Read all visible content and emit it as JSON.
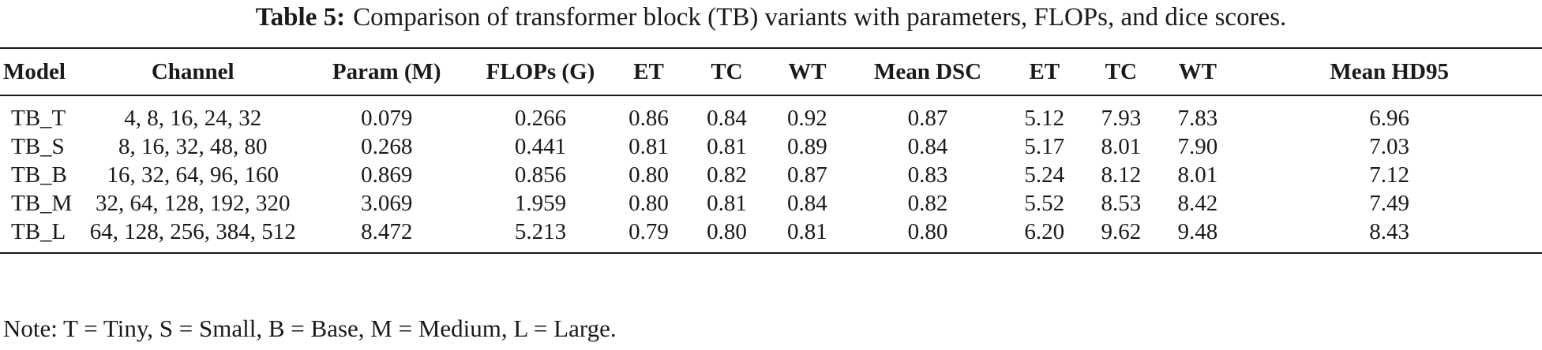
{
  "caption": {
    "label": "Table 5:",
    "text": "Comparison of transformer block (TB) variants with parameters, FLOPs, and dice scores."
  },
  "table": {
    "headers": [
      "Model",
      "Channel",
      "Param (M)",
      "FLOPs (G)",
      "ET",
      "TC",
      "WT",
      "Mean DSC",
      "ET",
      "TC",
      "WT",
      "Mean HD95"
    ],
    "rows": [
      [
        "TB_T",
        "4, 8, 16, 24, 32",
        "0.079",
        "0.266",
        "0.86",
        "0.84",
        "0.92",
        "0.87",
        "5.12",
        "7.93",
        "7.83",
        "6.96"
      ],
      [
        "TB_S",
        "8, 16, 32, 48, 80",
        "0.268",
        "0.441",
        "0.81",
        "0.81",
        "0.89",
        "0.84",
        "5.17",
        "8.01",
        "7.90",
        "7.03"
      ],
      [
        "TB_B",
        "16, 32, 64, 96, 160",
        "0.869",
        "0.856",
        "0.80",
        "0.82",
        "0.87",
        "0.83",
        "5.24",
        "8.12",
        "8.01",
        "7.12"
      ],
      [
        "TB_M",
        "32, 64, 128, 192, 320",
        "3.069",
        "1.959",
        "0.80",
        "0.81",
        "0.84",
        "0.82",
        "5.52",
        "8.53",
        "8.42",
        "7.49"
      ],
      [
        "TB_L",
        "64, 128, 256, 384, 512",
        "8.472",
        "5.213",
        "0.79",
        "0.80",
        "0.81",
        "0.80",
        "6.20",
        "9.62",
        "9.48",
        "8.43"
      ]
    ]
  },
  "note": "Note: T = Tiny, S = Small, B = Base, M = Medium, L = Large."
}
